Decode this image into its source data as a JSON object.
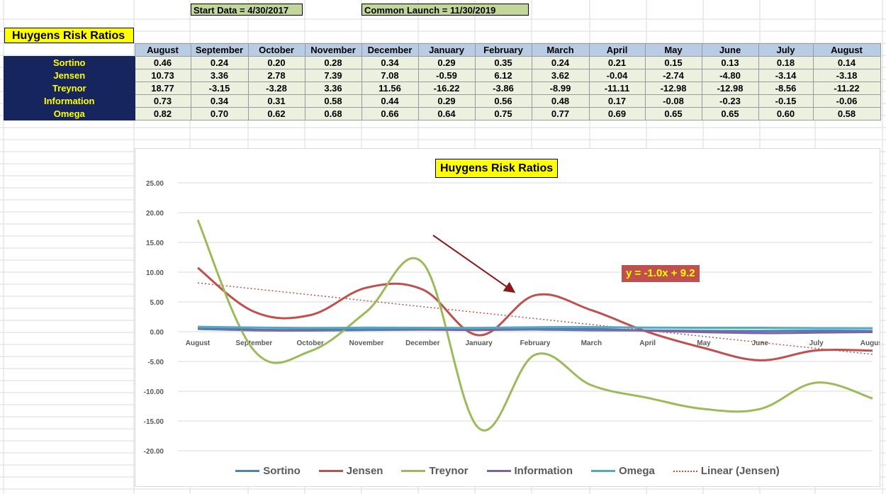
{
  "header": {
    "start_label": "Start Data = 4/30/2017",
    "launch_label": "Common Launch = 11/30/2019",
    "title": "Huygens Risk Ratios"
  },
  "table": {
    "months": [
      "August",
      "September",
      "October",
      "November",
      "December",
      "January",
      "February",
      "March",
      "April",
      "May",
      "June",
      "July",
      "August"
    ],
    "rows": [
      {
        "label": "Sortino",
        "values": [
          "0.46",
          "0.24",
          "0.20",
          "0.28",
          "0.34",
          "0.29",
          "0.35",
          "0.24",
          "0.21",
          "0.15",
          "0.13",
          "0.18",
          "0.14"
        ]
      },
      {
        "label": "Jensen",
        "values": [
          "10.73",
          "3.36",
          "2.78",
          "7.39",
          "7.08",
          "-0.59",
          "6.12",
          "3.62",
          "-0.04",
          "-2.74",
          "-4.80",
          "-3.14",
          "-3.18"
        ]
      },
      {
        "label": "Treynor",
        "values": [
          "18.77",
          "-3.15",
          "-3.28",
          "3.36",
          "11.56",
          "-16.22",
          "-3.86",
          "-8.99",
          "-11.11",
          "-12.98",
          "-12.98",
          "-8.56",
          "-11.22"
        ]
      },
      {
        "label": "Information",
        "values": [
          "0.73",
          "0.34",
          "0.31",
          "0.58",
          "0.44",
          "0.29",
          "0.56",
          "0.48",
          "0.17",
          "-0.08",
          "-0.23",
          "-0.15",
          "-0.06"
        ]
      },
      {
        "label": "Omega",
        "values": [
          "0.82",
          "0.70",
          "0.62",
          "0.68",
          "0.66",
          "0.64",
          "0.75",
          "0.77",
          "0.69",
          "0.65",
          "0.65",
          "0.60",
          "0.58"
        ]
      }
    ]
  },
  "chart_data": {
    "type": "line",
    "title": "Huygens Risk Ratios",
    "categories": [
      "August",
      "September",
      "October",
      "November",
      "December",
      "January",
      "February",
      "March",
      "April",
      "May",
      "June",
      "July",
      "August"
    ],
    "series": [
      {
        "name": "Sortino",
        "color": "#4f81bd",
        "values": [
          0.46,
          0.24,
          0.2,
          0.28,
          0.34,
          0.29,
          0.35,
          0.24,
          0.21,
          0.15,
          0.13,
          0.18,
          0.14
        ]
      },
      {
        "name": "Jensen",
        "color": "#c0504d",
        "values": [
          10.73,
          3.36,
          2.78,
          7.39,
          7.08,
          -0.59,
          6.12,
          3.62,
          -0.04,
          -2.74,
          -4.8,
          -3.14,
          -3.18
        ]
      },
      {
        "name": "Treynor",
        "color": "#9bbb59",
        "values": [
          18.77,
          -3.15,
          -3.28,
          3.36,
          11.56,
          -16.22,
          -3.86,
          -8.99,
          -11.11,
          -12.98,
          -12.98,
          -8.56,
          -11.22
        ]
      },
      {
        "name": "Information",
        "color": "#8064a2",
        "values": [
          0.73,
          0.34,
          0.31,
          0.58,
          0.44,
          0.29,
          0.56,
          0.48,
          0.17,
          -0.08,
          -0.23,
          -0.15,
          -0.06
        ]
      },
      {
        "name": "Omega",
        "color": "#4bacc6",
        "values": [
          0.82,
          0.7,
          0.62,
          0.68,
          0.66,
          0.64,
          0.75,
          0.77,
          0.69,
          0.65,
          0.65,
          0.6,
          0.58
        ]
      }
    ],
    "trendline": {
      "name": "Linear (Jensen)",
      "color": "#c0504d",
      "slope": -1.0,
      "intercept": 9.2,
      "label": "y = -1.0x + 9.2"
    },
    "yticks": [
      "25.00",
      "20.00",
      "15.00",
      "10.00",
      "5.00",
      "0.00",
      "-5.00",
      "-10.00",
      "-15.00",
      "-20.00"
    ],
    "ylim": [
      -20,
      25
    ],
    "grid": true,
    "legend_position": "bottom",
    "annotation": "arrow pointing at Jensen February value"
  }
}
